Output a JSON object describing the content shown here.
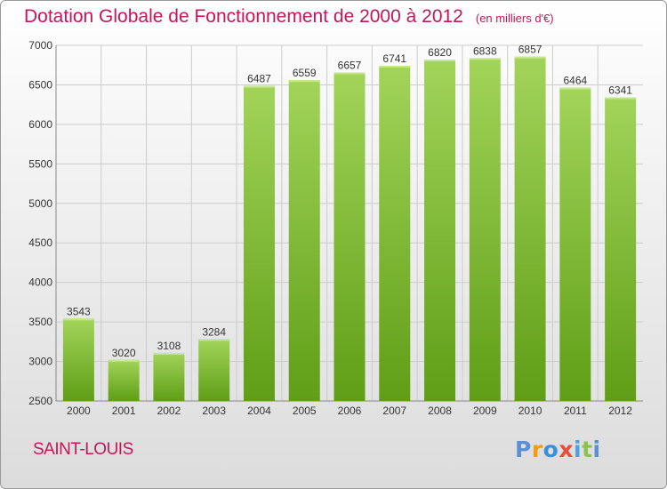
{
  "header": {
    "title": "Dotation Globale de Fonctionnement de 2000 à 2012",
    "subtitle": "(en milliers d'€)"
  },
  "footer": {
    "commune": "SAINT-LOUIS",
    "brand": "Proxiti"
  },
  "colors": {
    "title": "#c2185b",
    "bar_light": "#a2d45a",
    "bar_dark": "#5f9e16",
    "grid": "#cccccc"
  },
  "chart_data": {
    "type": "bar",
    "title": "Dotation Globale de Fonctionnement de 2000 à 2012",
    "subtitle": "(en milliers d'€)",
    "xlabel": "",
    "ylabel": "",
    "categories": [
      "2000",
      "2001",
      "2002",
      "2003",
      "2004",
      "2005",
      "2006",
      "2007",
      "2008",
      "2009",
      "2010",
      "2011",
      "2012"
    ],
    "values": [
      3543,
      3020,
      3108,
      3284,
      6487,
      6559,
      6657,
      6741,
      6820,
      6838,
      6857,
      6464,
      6341
    ],
    "ylim": [
      2500,
      7000
    ],
    "yticks": [
      2500,
      3000,
      3500,
      4000,
      4500,
      5000,
      5500,
      6000,
      6500,
      7000
    ],
    "grid": true,
    "data_labels": true,
    "legend": "none"
  }
}
